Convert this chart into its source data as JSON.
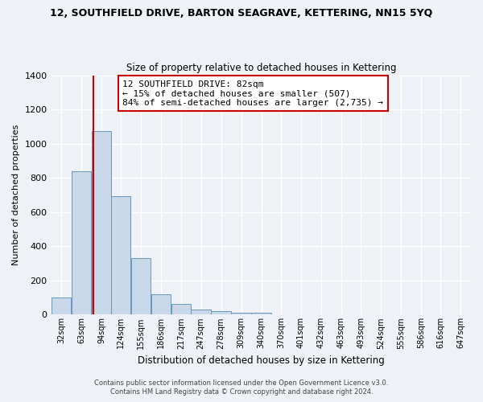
{
  "title": "12, SOUTHFIELD DRIVE, BARTON SEAGRAVE, KETTERING, NN15 5YQ",
  "subtitle": "Size of property relative to detached houses in Kettering",
  "xlabel": "Distribution of detached houses by size in Kettering",
  "ylabel": "Number of detached properties",
  "bar_labels": [
    "32sqm",
    "63sqm",
    "94sqm",
    "124sqm",
    "155sqm",
    "186sqm",
    "217sqm",
    "247sqm",
    "278sqm",
    "309sqm",
    "340sqm",
    "370sqm",
    "401sqm",
    "432sqm",
    "463sqm",
    "493sqm",
    "524sqm",
    "555sqm",
    "586sqm",
    "616sqm",
    "647sqm"
  ],
  "bar_values": [
    100,
    840,
    1075,
    695,
    330,
    120,
    62,
    30,
    22,
    12,
    10,
    0,
    0,
    0,
    0,
    0,
    0,
    0,
    0,
    0,
    0
  ],
  "bar_color": "#c8d8e8",
  "bar_edgecolor": "#6699bb",
  "vline_x": 82,
  "vline_color": "#cc0000",
  "ylim": [
    0,
    1400
  ],
  "yticks": [
    0,
    200,
    400,
    600,
    800,
    1000,
    1200,
    1400
  ],
  "annotation_title": "12 SOUTHFIELD DRIVE: 82sqm",
  "annotation_line1": "← 15% of detached houses are smaller (507)",
  "annotation_line2": "84% of semi-detached houses are larger (2,735) →",
  "annotation_box_color": "#ffffff",
  "annotation_box_edgecolor": "#cc0000",
  "background_color": "#eef2f7",
  "footer1": "Contains HM Land Registry data © Crown copyright and database right 2024.",
  "footer2": "Contains public sector information licensed under the Open Government Licence v3.0.",
  "bin_width": 31
}
